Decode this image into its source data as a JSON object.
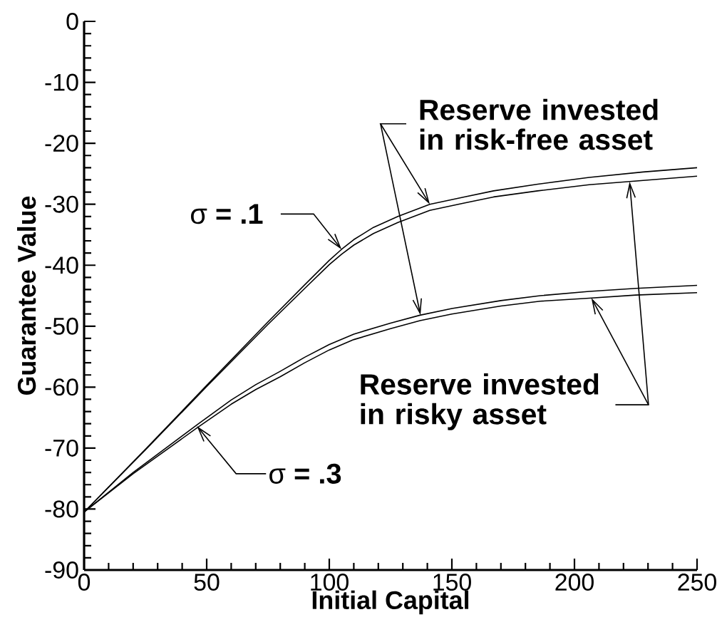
{
  "chart_data": {
    "type": "line",
    "xlabel": "Initial Capital",
    "ylabel": "Guarantee Value",
    "xlim": [
      0,
      250
    ],
    "ylim": [
      -90,
      0
    ],
    "xticks": [
      0,
      {
        "value": 10,
        "label": null
      },
      {
        "value": 20,
        "label": null
      },
      {
        "value": 30,
        "label": null
      },
      {
        "value": 40,
        "label": null
      },
      50,
      {
        "value": 60,
        "label": null
      },
      {
        "value": 70,
        "label": null
      },
      {
        "value": 80,
        "label": null
      },
      {
        "value": 90,
        "label": null
      },
      100,
      {
        "value": 110,
        "label": null
      },
      {
        "value": 120,
        "label": null
      },
      {
        "value": 130,
        "label": null
      },
      {
        "value": 140,
        "label": null
      },
      150,
      {
        "value": 160,
        "label": null
      },
      {
        "value": 170,
        "label": null
      },
      {
        "value": 180,
        "label": null
      },
      {
        "value": 190,
        "label": null
      },
      200,
      {
        "value": 210,
        "label": null
      },
      {
        "value": 220,
        "label": null
      },
      {
        "value": 230,
        "label": null
      },
      {
        "value": 240,
        "label": null
      },
      250
    ],
    "yticks": [
      -90,
      {
        "value": -88,
        "label": null
      },
      {
        "value": -86,
        "label": null
      },
      {
        "value": -84,
        "label": null
      },
      {
        "value": -82,
        "label": null
      },
      -80,
      {
        "value": -78,
        "label": null
      },
      {
        "value": -76,
        "label": null
      },
      {
        "value": -74,
        "label": null
      },
      {
        "value": -72,
        "label": null
      },
      -70,
      {
        "value": -68,
        "label": null
      },
      {
        "value": -66,
        "label": null
      },
      {
        "value": -64,
        "label": null
      },
      {
        "value": -62,
        "label": null
      },
      -60,
      {
        "value": -58,
        "label": null
      },
      {
        "value": -56,
        "label": null
      },
      {
        "value": -54,
        "label": null
      },
      {
        "value": -52,
        "label": null
      },
      -50,
      {
        "value": -48,
        "label": null
      },
      {
        "value": -46,
        "label": null
      },
      {
        "value": -44,
        "label": null
      },
      {
        "value": -42,
        "label": null
      },
      -40,
      {
        "value": -38,
        "label": null
      },
      {
        "value": -36,
        "label": null
      },
      {
        "value": -34,
        "label": null
      },
      {
        "value": -32,
        "label": null
      },
      -30,
      {
        "value": -28,
        "label": null
      },
      {
        "value": -26,
        "label": null
      },
      {
        "value": -24,
        "label": null
      },
      {
        "value": -22,
        "label": null
      },
      -20,
      {
        "value": -18,
        "label": null
      },
      {
        "value": -16,
        "label": null
      },
      {
        "value": -14,
        "label": null
      },
      {
        "value": -12,
        "label": null
      },
      -10,
      {
        "value": -8,
        "label": null
      },
      {
        "value": -6,
        "label": null
      },
      {
        "value": -4,
        "label": null
      },
      {
        "value": -2,
        "label": null
      },
      0
    ],
    "series": [
      {
        "color": "#000000",
        "x": [
          0,
          25,
          50,
          75,
          90,
          100,
          105,
          110,
          118,
          128,
          141,
          155,
          167,
          185,
          206,
          228,
          250
        ],
        "values": [
          -80.5,
          -70.2,
          -59.7,
          -49.3,
          -43.2,
          -39.2,
          -37.4,
          -35.8,
          -33.8,
          -32.0,
          -30.0,
          -28.8,
          -27.8,
          -26.7,
          -25.6,
          -24.7,
          -24.0
        ]
      },
      {
        "color": "#000000",
        "x": [
          0,
          25,
          50,
          75,
          90,
          100,
          105,
          110,
          118,
          128,
          141,
          155,
          167,
          185,
          206,
          228,
          250
        ],
        "values": [
          -80.5,
          -70.3,
          -59.9,
          -49.7,
          -43.8,
          -39.9,
          -38.2,
          -36.7,
          -34.8,
          -33.0,
          -31.0,
          -29.8,
          -28.8,
          -27.8,
          -26.8,
          -26.1,
          -25.4
        ]
      },
      {
        "color": "#000000",
        "x": [
          0,
          20,
          46,
          60,
          70,
          80,
          90,
          100,
          110,
          125,
          137,
          150,
          170,
          186,
          206,
          225,
          250
        ],
        "values": [
          -80.5,
          -74.0,
          -66.2,
          -62.1,
          -59.6,
          -57.4,
          -55.1,
          -53.0,
          -51.3,
          -49.5,
          -48.2,
          -47.1,
          -45.8,
          -45.0,
          -44.3,
          -43.8,
          -43.3
        ]
      },
      {
        "color": "#000000",
        "x": [
          0,
          20,
          46,
          60,
          70,
          80,
          90,
          100,
          110,
          125,
          137,
          150,
          170,
          186,
          206,
          225,
          250
        ],
        "values": [
          -80.5,
          -74.2,
          -66.7,
          -62.8,
          -60.4,
          -58.3,
          -56.0,
          -53.9,
          -52.2,
          -50.4,
          -49.1,
          -48.0,
          -46.7,
          -45.9,
          -45.4,
          -44.9,
          -44.5
        ]
      }
    ],
    "annotations": [
      {
        "text": "Reserve invested in risk-free asset",
        "x": 141,
        "y": -30.0
      },
      {
        "text": "Reserve invested in risky asset",
        "x": 222.5,
        "y": -26.3
      },
      {
        "text": "σ **= .1**",
        "x": 105,
        "y": -37.4
      },
      {
        "text": "σ **= .3**",
        "x": 46,
        "y": -66.4
      }
    ]
  }
}
